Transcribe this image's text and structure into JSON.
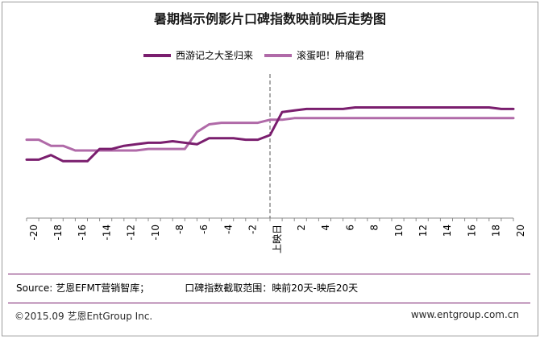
{
  "chart_data": {
    "type": "line",
    "title": "暑期档示例影片口碑指数映前映后走势图",
    "xlabel": "",
    "ylabel": "",
    "x": [
      -20,
      -19,
      -18,
      -17,
      -16,
      -15,
      -14,
      -13,
      -12,
      -11,
      -10,
      -9,
      -8,
      -7,
      -6,
      -5,
      -4,
      -3,
      -2,
      -1,
      0,
      1,
      2,
      3,
      4,
      5,
      6,
      7,
      8,
      9,
      10,
      11,
      12,
      13,
      14,
      15,
      16,
      17,
      18,
      19,
      20
    ],
    "x_tick_labels": [
      "-20",
      "-18",
      "-16",
      "-14",
      "-12",
      "-10",
      "-8",
      "-6",
      "-4",
      "-2",
      "上映日",
      "2",
      "4",
      "6",
      "8",
      "10",
      "12",
      "14",
      "16",
      "18",
      "20"
    ],
    "ylim": [
      0,
      100
    ],
    "grid": false,
    "legend_position": "top",
    "release_marker_x": 0,
    "series": [
      {
        "name": "西游记之大圣归来",
        "color": "#7a1e6e",
        "values": [
          38,
          38,
          41,
          37,
          37,
          37,
          45,
          45,
          47,
          48,
          49,
          49,
          50,
          49,
          48,
          52,
          52,
          52,
          51,
          51,
          54,
          69,
          70,
          71,
          71,
          71,
          71,
          72,
          72,
          72,
          72,
          72,
          72,
          72,
          72,
          72,
          72,
          72,
          72,
          71,
          71
        ]
      },
      {
        "name": "滚蛋吧！肿瘤君",
        "color": "#b06aa8",
        "values": [
          51,
          51,
          47,
          47,
          44,
          44,
          44,
          44,
          44,
          44,
          45,
          45,
          45,
          45,
          56,
          61,
          62,
          62,
          62,
          62,
          64,
          64,
          65,
          65,
          65,
          65,
          65,
          65,
          65,
          65,
          65,
          65,
          65,
          65,
          65,
          65,
          65,
          65,
          65,
          65,
          65
        ]
      }
    ]
  },
  "source": {
    "label": "Source: 艺恩EFMT营销智库；",
    "range": "口碑指数截取范围：映前20天-映后20天"
  },
  "footer": {
    "copyright": "©2015.09  艺恩EntGroup Inc.",
    "url": "www.entgroup.com.cn"
  }
}
